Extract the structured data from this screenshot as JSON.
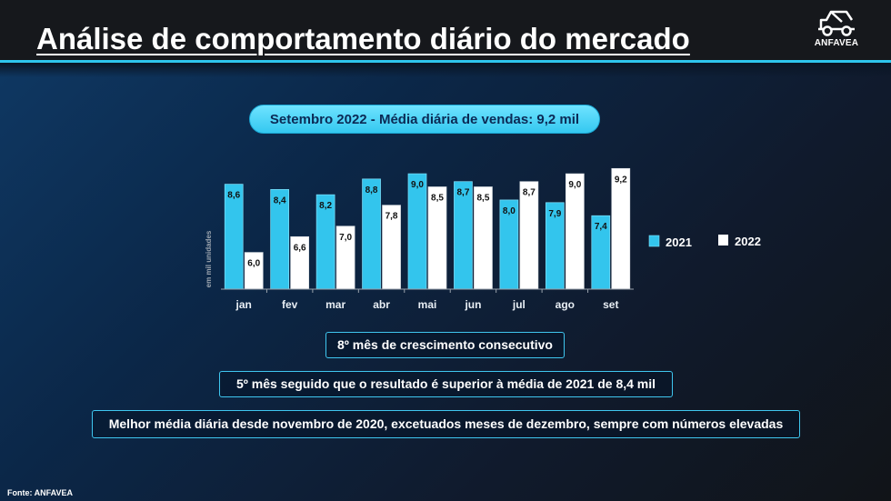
{
  "header": {
    "title": "Análise de comportamento diário do mercado",
    "logo_text": "ANFAVEA"
  },
  "colors": {
    "accent": "#2ec6ee",
    "series_2021": "#33c5ed",
    "series_2022": "#ffffff"
  },
  "summary_pill": "Setembro 2022 - Média diária de vendas: 9,2 mil",
  "chart_data": {
    "type": "bar",
    "title": "Setembro 2022 - Média diária de vendas: 9,2 mil",
    "ylabel": "em mil unidades",
    "xlabel": "",
    "categories": [
      "jan",
      "fev",
      "mar",
      "abr",
      "mai",
      "jun",
      "jul",
      "ago",
      "set"
    ],
    "series": [
      {
        "name": "2021",
        "values": [
          8.6,
          8.4,
          8.2,
          8.8,
          9.0,
          8.7,
          8.0,
          7.9,
          7.4
        ],
        "labels": [
          "8,6",
          "8,4",
          "8,2",
          "8,8",
          "9,0",
          "8,7",
          "8,0",
          "7,9",
          "7,4"
        ]
      },
      {
        "name": "2022",
        "values": [
          6.0,
          6.6,
          7.0,
          7.8,
          8.5,
          8.5,
          8.7,
          9.0,
          9.2
        ],
        "labels": [
          "6,0",
          "6,6",
          "7,0",
          "7,8",
          "8,5",
          "8,5",
          "8,7",
          "9,0",
          "9,2"
        ]
      }
    ],
    "ylim": [
      4.6,
      9.8
    ],
    "grid": false,
    "legend": "right"
  },
  "highlights": [
    "8º mês de crescimento consecutivo",
    "5º mês seguido que o resultado é superior à média de 2021 de 8,4 mil",
    "Melhor média diária desde novembro de 2020, excetuados meses de dezembro, sempre com números elevadas"
  ],
  "source": "Fonte: ANFAVEA"
}
